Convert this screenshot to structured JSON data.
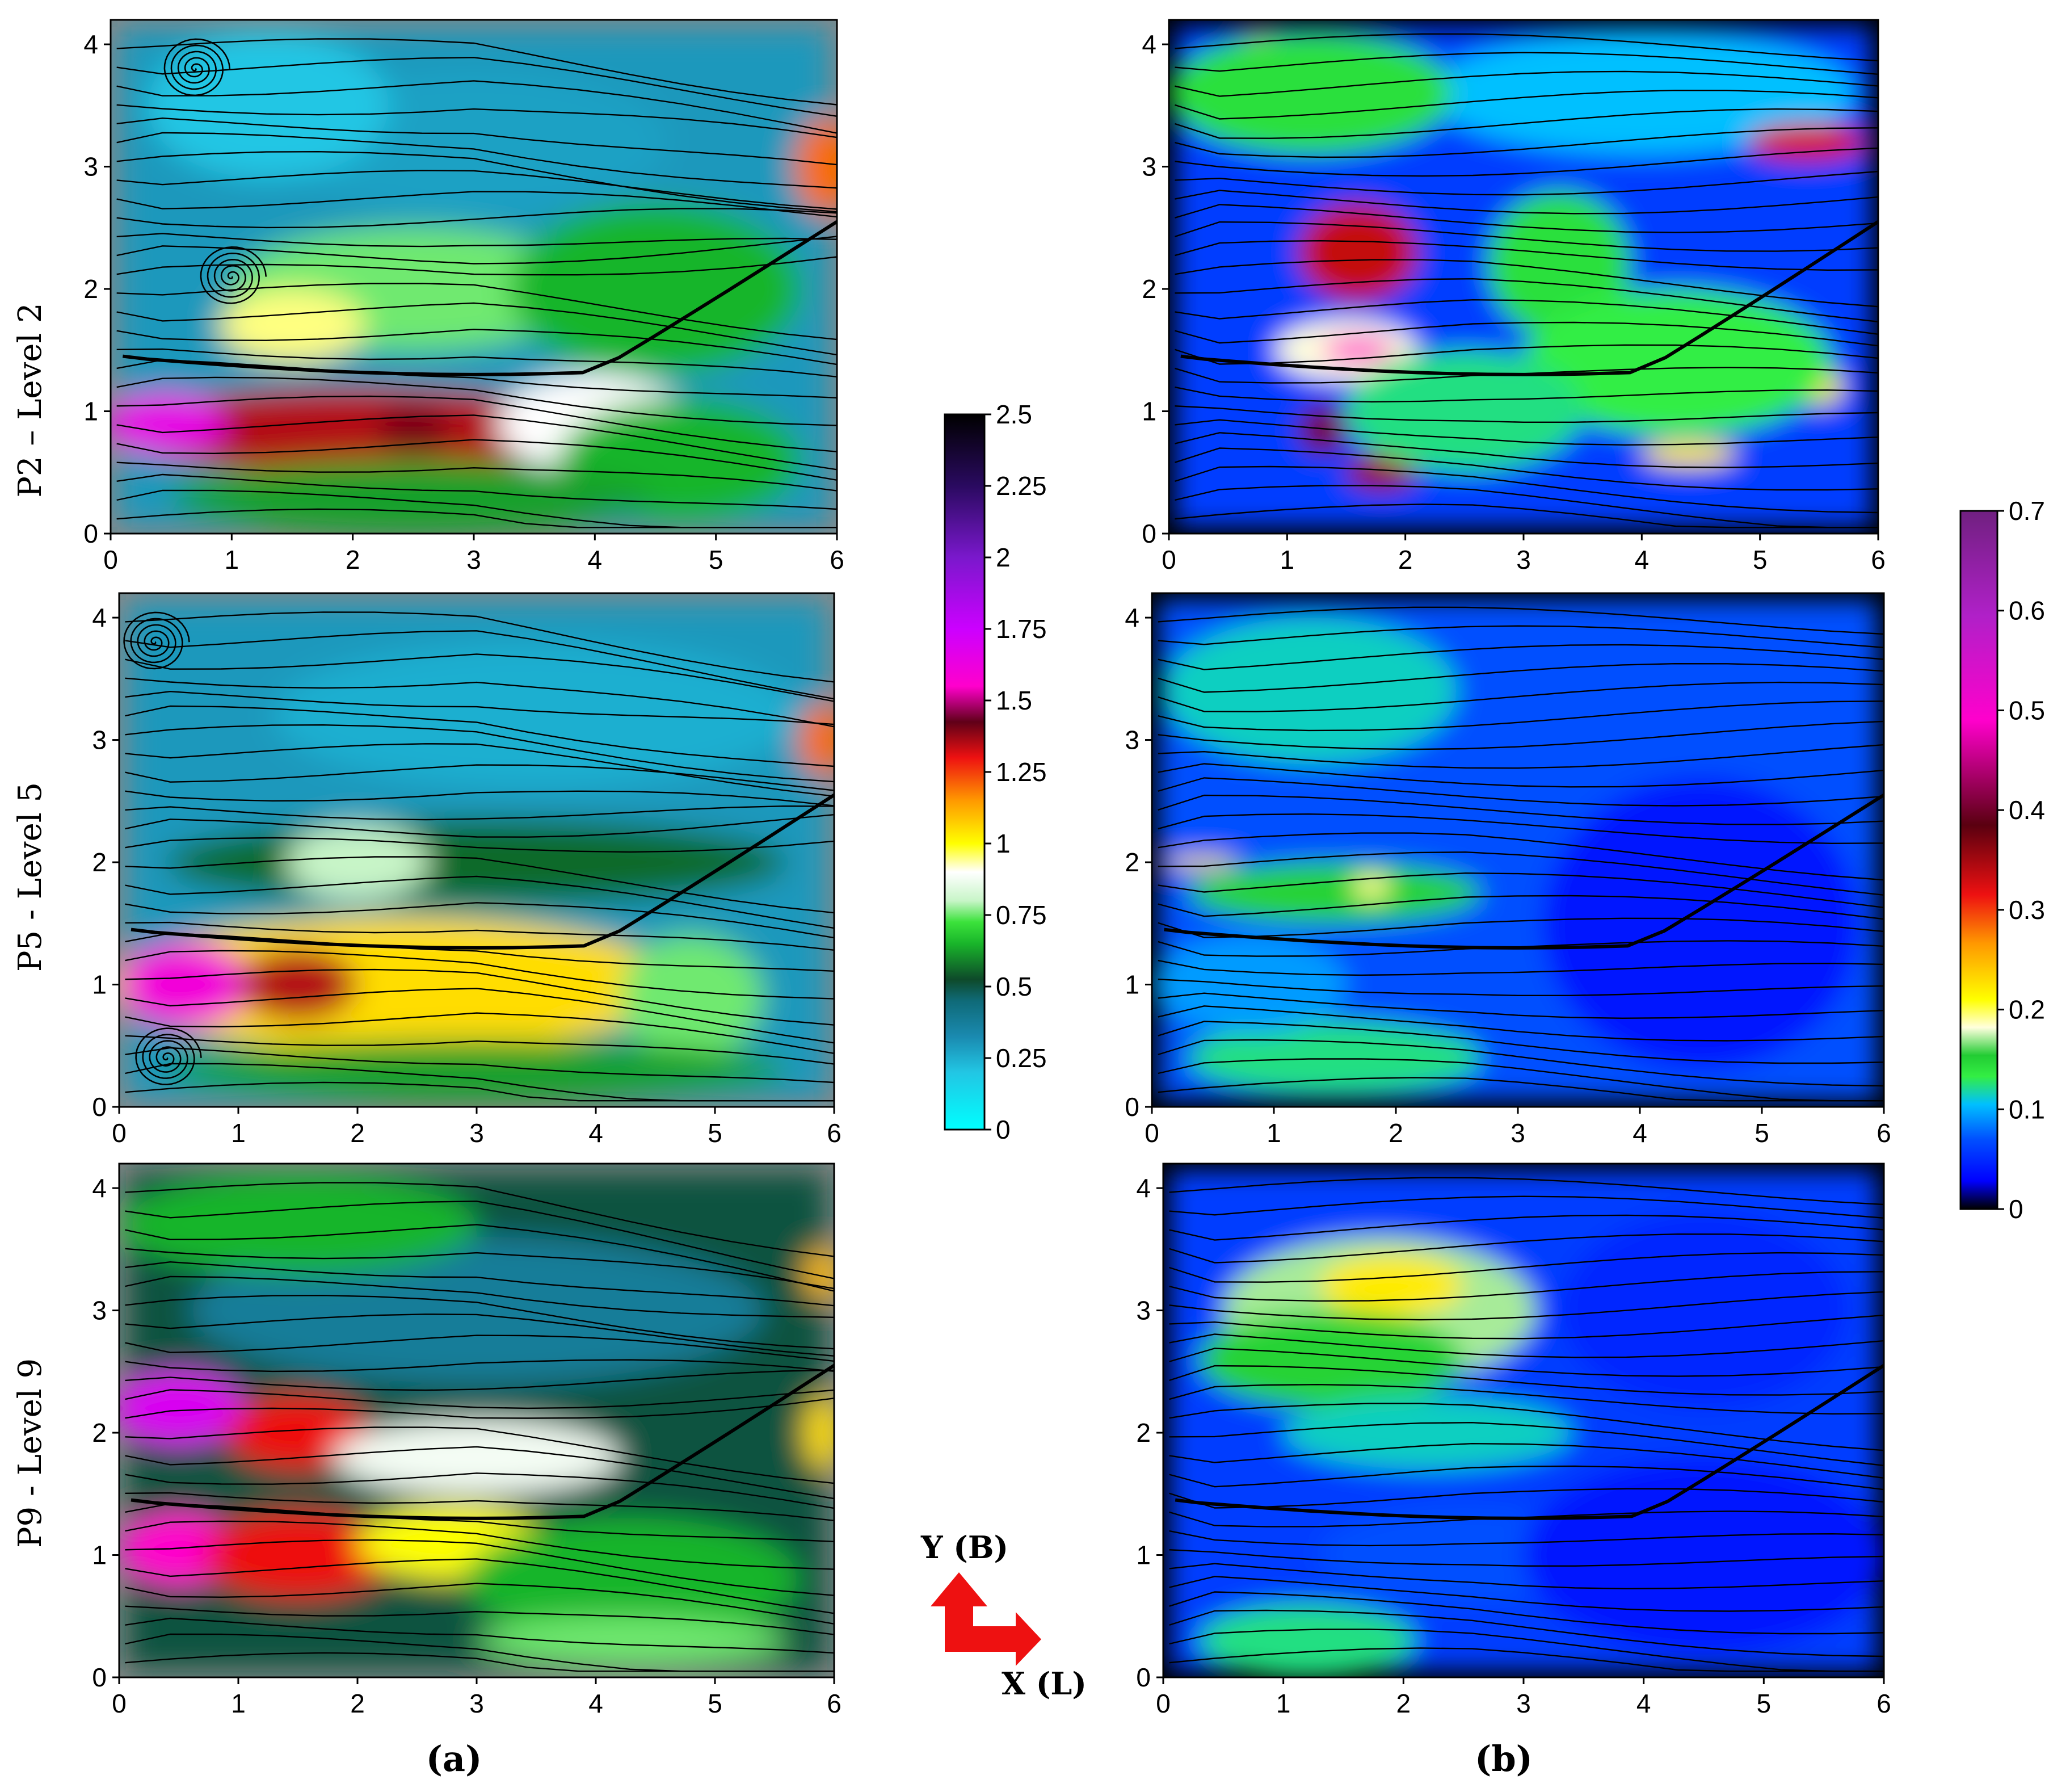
{
  "figure": {
    "row_labels": [
      "P2 – Level 2",
      "P5 - Level 5",
      "P9 - Level 9"
    ],
    "column_labels": [
      "(a)",
      "(b)"
    ],
    "axis_legend": {
      "y": "Y (B)",
      "x": "X (L)",
      "arrow_color": "#ee1111"
    }
  },
  "chart_data": [
    {
      "type": "heatmap",
      "panel": "a",
      "level": "P2 – Level 2",
      "xlim": [
        0,
        6
      ],
      "ylim": [
        0,
        4.2
      ],
      "xticks": [
        "0",
        "1",
        "2",
        "3",
        "4",
        "5",
        "6"
      ],
      "yticks": [
        "0",
        "1",
        "2",
        "3",
        "4"
      ],
      "colorbar": {
        "min": 0,
        "max": 2.5,
        "ticks": [
          "0",
          "0.25",
          "0.5",
          "0.75",
          "1",
          "1.25",
          "1.5",
          "1.75",
          "2",
          "2.25",
          "2.5"
        ]
      },
      "field": "velocity magnitude with streamlines",
      "features": [
        {
          "kind": "jet",
          "x_range": [
            0,
            4
          ],
          "y": 0.85,
          "value": 1.4
        },
        {
          "kind": "core",
          "x": 0.5,
          "y": 0.9,
          "value": 1.65
        },
        {
          "kind": "vortex",
          "x": 0.7,
          "y": 3.8
        },
        {
          "kind": "vortex",
          "x": 1.0,
          "y": 2.1
        },
        {
          "kind": "outlet_jet",
          "x": 5.9,
          "y": 3.0,
          "value": 1.2
        }
      ]
    },
    {
      "type": "heatmap",
      "panel": "a",
      "level": "P5 - Level 5",
      "xlim": [
        0,
        6
      ],
      "ylim": [
        0,
        4.2
      ],
      "xticks": [
        "0",
        "1",
        "2",
        "3",
        "4",
        "5",
        "6"
      ],
      "yticks": [
        "0",
        "1",
        "2",
        "3",
        "4"
      ],
      "colorbar": {
        "min": 0,
        "max": 2.5
      },
      "field": "velocity magnitude with streamlines",
      "features": [
        {
          "kind": "jet",
          "x_range": [
            0,
            4.5
          ],
          "y": 0.9,
          "value": 1.1
        },
        {
          "kind": "core",
          "x": 0.6,
          "y": 1.0,
          "value": 1.65
        },
        {
          "kind": "vortex",
          "x": 0.3,
          "y": 3.8
        },
        {
          "kind": "vortex",
          "x": 0.4,
          "y": 0.4
        },
        {
          "kind": "outlet_jet",
          "x": 5.9,
          "y": 3.0,
          "value": 1.2
        }
      ]
    },
    {
      "type": "heatmap",
      "panel": "a",
      "level": "P9 - Level 9",
      "xlim": [
        0,
        6
      ],
      "ylim": [
        0,
        4.2
      ],
      "xticks": [
        "0",
        "1",
        "2",
        "3",
        "4",
        "5",
        "6"
      ],
      "yticks": [
        "0",
        "1",
        "2",
        "3",
        "4"
      ],
      "colorbar": {
        "min": 0,
        "max": 2.5
      },
      "field": "velocity magnitude with streamlines",
      "features": [
        {
          "kind": "jet",
          "x_range": [
            0,
            3
          ],
          "y": 1.0,
          "value": 1.3
        },
        {
          "kind": "jet",
          "x_range": [
            0,
            3
          ],
          "y": 2.1,
          "value": 1.3
        },
        {
          "kind": "core",
          "x": 0.5,
          "y": 2.2,
          "value": 1.7
        },
        {
          "kind": "core",
          "x": 0.5,
          "y": 1.0,
          "value": 1.55
        }
      ]
    },
    {
      "type": "heatmap",
      "panel": "b",
      "level": "P2 – Level 2",
      "xlim": [
        0,
        6
      ],
      "ylim": [
        0,
        4.2
      ],
      "xticks": [
        "0",
        "1",
        "2",
        "3",
        "4",
        "5",
        "6"
      ],
      "yticks": [
        "0",
        "1",
        "2",
        "3",
        "4"
      ],
      "colorbar": {
        "min": 0,
        "max": 0.7,
        "ticks": [
          "0",
          "0.1",
          "0.2",
          "0.3",
          "0.4",
          "0.5",
          "0.6",
          "0.7"
        ]
      },
      "field": "turbulence intensity with streamlines",
      "features": [
        {
          "kind": "hotspot",
          "x": 1.5,
          "y": 2.3,
          "value": 0.35
        },
        {
          "kind": "hotspot",
          "x": 1.3,
          "y": 0.9,
          "value": 0.4
        },
        {
          "kind": "hotspot",
          "x": 1.7,
          "y": 1.5,
          "value": 0.5
        },
        {
          "kind": "hotspot",
          "x": 5.4,
          "y": 3.2,
          "value": 0.3
        },
        {
          "kind": "hotspot",
          "x": 0.8,
          "y": 3.8,
          "value": 0.25
        }
      ]
    },
    {
      "type": "heatmap",
      "panel": "b",
      "level": "P5 - Level 5",
      "xlim": [
        0,
        6
      ],
      "ylim": [
        0,
        4.2
      ],
      "xticks": [
        "0",
        "1",
        "2",
        "3",
        "4",
        "5",
        "6"
      ],
      "yticks": [
        "0",
        "1",
        "2",
        "3",
        "4"
      ],
      "colorbar": {
        "min": 0,
        "max": 0.7
      },
      "field": "turbulence intensity with streamlines",
      "features": [
        {
          "kind": "band",
          "x": 1.8,
          "y": 1.75,
          "value": 0.15
        },
        {
          "kind": "band",
          "x": 1.5,
          "y": 0.4,
          "value": 0.1
        }
      ]
    },
    {
      "type": "heatmap",
      "panel": "b",
      "level": "P9 - Level 9",
      "xlim": [
        0,
        6
      ],
      "ylim": [
        0,
        4.2
      ],
      "xticks": [
        "0",
        "1",
        "2",
        "3",
        "4",
        "5",
        "6"
      ],
      "yticks": [
        "0",
        "1",
        "2",
        "3",
        "4"
      ],
      "colorbar": {
        "min": 0,
        "max": 0.7
      },
      "field": "turbulence intensity with streamlines",
      "features": [
        {
          "kind": "hotspot",
          "x": 1.8,
          "y": 3.1,
          "value": 0.2
        },
        {
          "kind": "band",
          "x": 1.5,
          "y": 2.6,
          "value": 0.15
        }
      ]
    }
  ]
}
